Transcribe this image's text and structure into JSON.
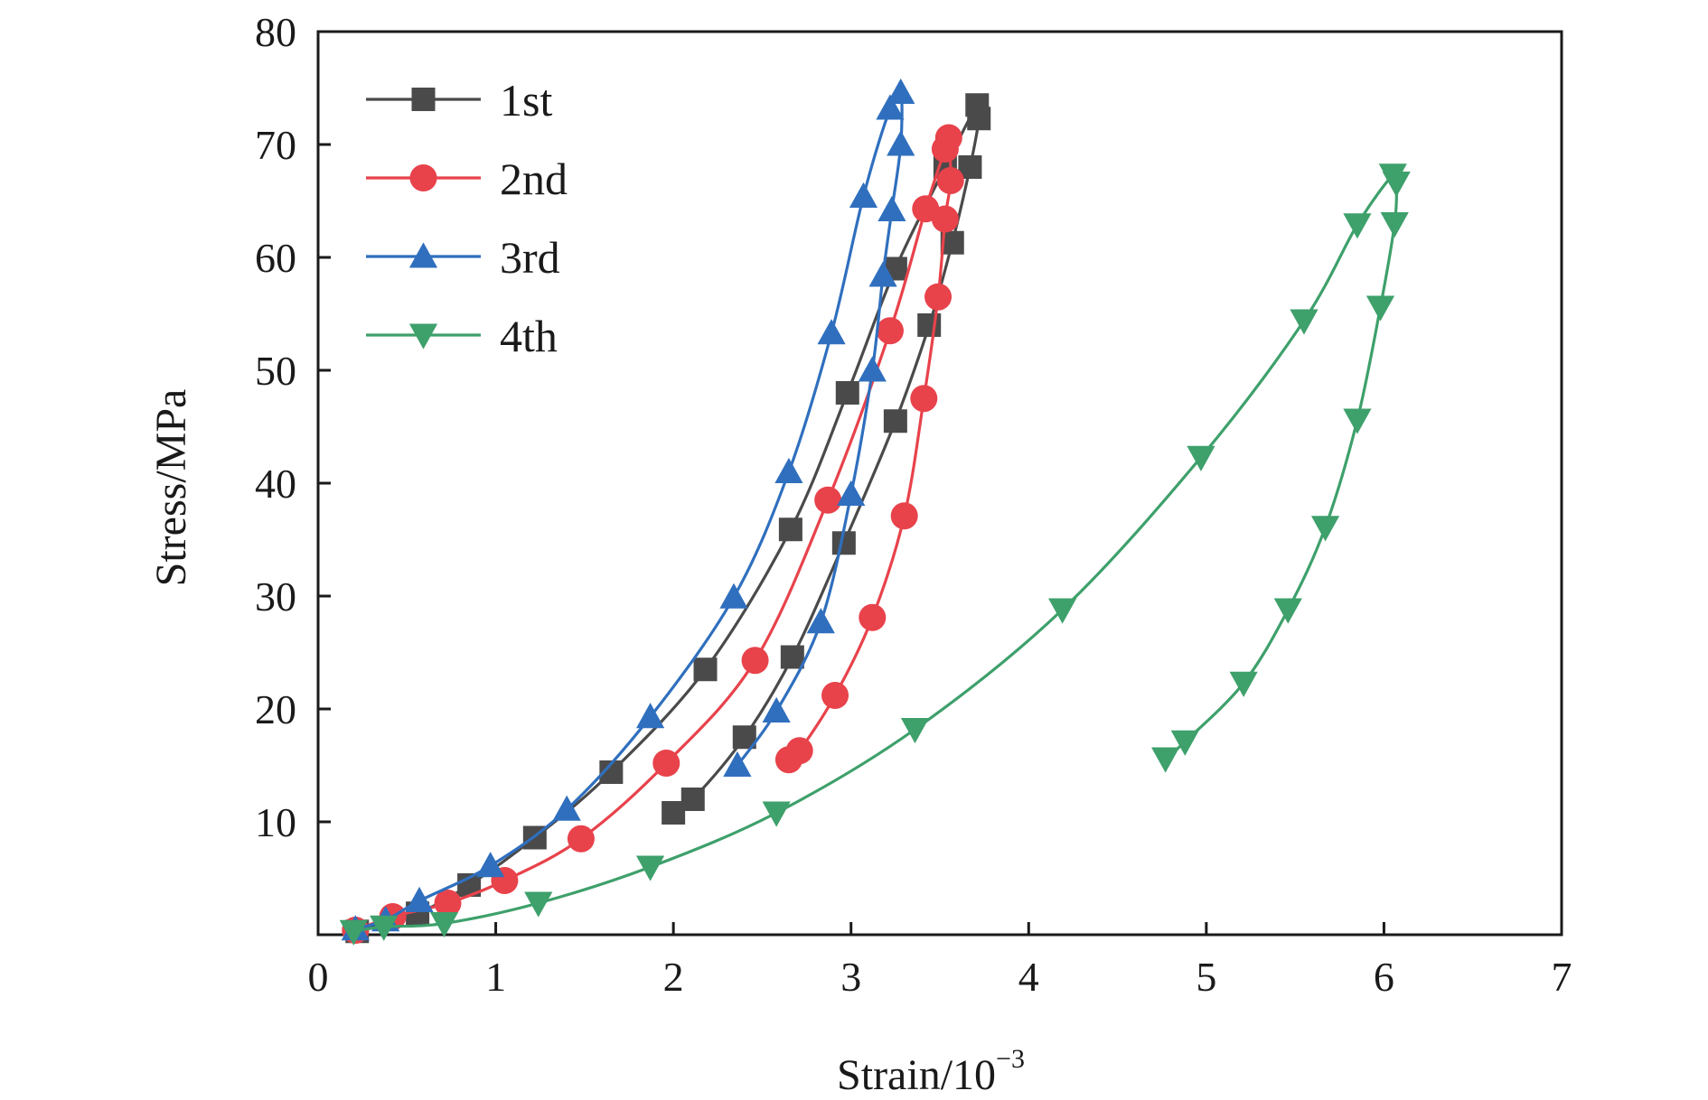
{
  "chart_data": {
    "type": "line",
    "title": "",
    "xlabel": "Strain/10",
    "xlabel_exponent": "−3",
    "ylabel": "Stress/MPa",
    "xlim": [
      0,
      7
    ],
    "ylim": [
      0,
      80
    ],
    "xticks": [
      0,
      1,
      2,
      3,
      4,
      5,
      6,
      7
    ],
    "yticks": [
      10,
      20,
      30,
      40,
      50,
      60,
      70,
      80
    ],
    "grid": false,
    "legend_position": "top-left",
    "series": [
      {
        "name": "1st",
        "color": "#4a4a4a",
        "marker": "square",
        "points": [
          [
            0.22,
            0.3
          ],
          [
            0.56,
            1.9
          ],
          [
            0.85,
            4.4
          ],
          [
            1.22,
            8.6
          ],
          [
            1.65,
            14.4
          ],
          [
            2.18,
            23.5
          ],
          [
            2.66,
            35.9
          ],
          [
            2.98,
            48.0
          ],
          [
            3.25,
            59.0
          ],
          [
            3.53,
            68.0
          ],
          [
            3.71,
            73.5
          ],
          [
            3.72,
            72.3
          ],
          [
            3.67,
            68.0
          ],
          [
            3.57,
            61.3
          ],
          [
            3.44,
            54.0
          ],
          [
            3.25,
            45.5
          ],
          [
            2.96,
            34.7
          ],
          [
            2.67,
            24.6
          ],
          [
            2.4,
            17.5
          ],
          [
            2.11,
            12.0
          ],
          [
            2.0,
            10.8
          ]
        ]
      },
      {
        "name": "2nd",
        "color": "#e8424b",
        "marker": "circle",
        "points": [
          [
            0.21,
            0.4
          ],
          [
            0.42,
            1.6
          ],
          [
            0.73,
            2.8
          ],
          [
            1.05,
            4.8
          ],
          [
            1.48,
            8.5
          ],
          [
            1.96,
            15.2
          ],
          [
            2.46,
            24.3
          ],
          [
            2.87,
            38.5
          ],
          [
            3.22,
            53.5
          ],
          [
            3.42,
            64.3
          ],
          [
            3.53,
            69.6
          ],
          [
            3.55,
            70.6
          ],
          [
            3.56,
            66.8
          ],
          [
            3.53,
            63.4
          ],
          [
            3.49,
            56.5
          ],
          [
            3.41,
            47.5
          ],
          [
            3.3,
            37.1
          ],
          [
            3.12,
            28.1
          ],
          [
            2.91,
            21.2
          ],
          [
            2.71,
            16.3
          ],
          [
            2.65,
            15.5
          ]
        ]
      },
      {
        "name": "3rd",
        "color": "#2f6fbe",
        "marker": "triangle-up",
        "points": [
          [
            0.21,
            0.5
          ],
          [
            0.38,
            1.3
          ],
          [
            0.57,
            3.0
          ],
          [
            0.97,
            6.1
          ],
          [
            1.4,
            11.1
          ],
          [
            1.87,
            19.3
          ],
          [
            2.34,
            29.9
          ],
          [
            2.65,
            41.0
          ],
          [
            2.89,
            53.3
          ],
          [
            3.07,
            65.4
          ],
          [
            3.22,
            73.2
          ],
          [
            3.28,
            74.6
          ],
          [
            3.28,
            70.0
          ],
          [
            3.23,
            64.2
          ],
          [
            3.18,
            58.4
          ],
          [
            3.12,
            50.0
          ],
          [
            3.0,
            39.0
          ],
          [
            2.83,
            27.7
          ],
          [
            2.58,
            19.8
          ],
          [
            2.36,
            15.0
          ]
        ]
      },
      {
        "name": "4th",
        "color": "#3ea06b",
        "marker": "triangle-down",
        "points": [
          [
            0.2,
            0.3
          ],
          [
            0.37,
            0.7
          ],
          [
            0.71,
            1.0
          ],
          [
            1.24,
            2.8
          ],
          [
            1.87,
            6.0
          ],
          [
            2.58,
            10.8
          ],
          [
            3.36,
            18.2
          ],
          [
            4.19,
            28.8
          ],
          [
            4.97,
            42.3
          ],
          [
            5.55,
            54.4
          ],
          [
            5.85,
            62.9
          ],
          [
            6.05,
            67.3
          ],
          [
            6.07,
            66.6
          ],
          [
            6.06,
            63.0
          ],
          [
            5.98,
            55.6
          ],
          [
            5.85,
            45.6
          ],
          [
            5.67,
            36.1
          ],
          [
            5.46,
            28.8
          ],
          [
            5.21,
            22.3
          ],
          [
            4.88,
            17.1
          ],
          [
            4.77,
            15.6
          ]
        ]
      }
    ]
  }
}
